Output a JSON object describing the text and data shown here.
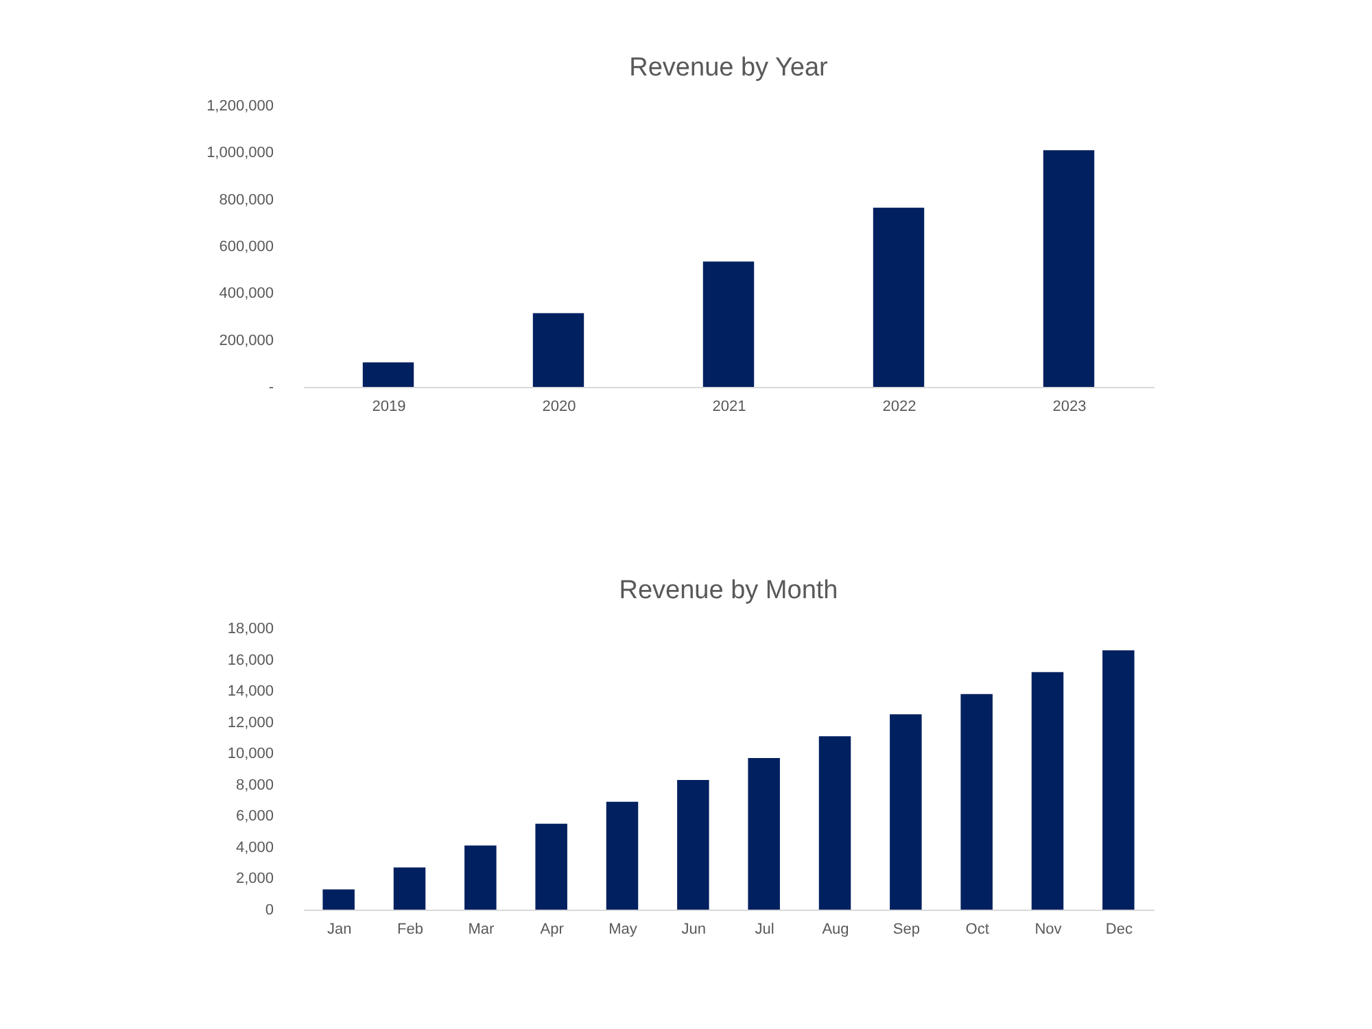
{
  "chart_data": [
    {
      "type": "bar",
      "title": "Revenue by Year",
      "categories": [
        "2019",
        "2020",
        "2021",
        "2022",
        "2023"
      ],
      "values": [
        105000,
        315000,
        535000,
        765000,
        1010000
      ],
      "color": "#002060",
      "ylim": [
        0,
        1200000
      ],
      "yticks": [
        {
          "value": 0,
          "label": "-"
        },
        {
          "value": 200000,
          "label": "200,000"
        },
        {
          "value": 400000,
          "label": "400,000"
        },
        {
          "value": 600000,
          "label": "600,000"
        },
        {
          "value": 800000,
          "label": "800,000"
        },
        {
          "value": 1000000,
          "label": "1,000,000"
        },
        {
          "value": 1200000,
          "label": "1,200,000"
        }
      ],
      "grid": false
    },
    {
      "type": "bar",
      "title": "Revenue by Month",
      "categories": [
        "Jan",
        "Feb",
        "Mar",
        "Apr",
        "May",
        "Jun",
        "Jul",
        "Aug",
        "Sep",
        "Oct",
        "Nov",
        "Dec"
      ],
      "values": [
        1300,
        2700,
        4100,
        5500,
        6900,
        8300,
        9700,
        11100,
        12500,
        13800,
        15200,
        16600
      ],
      "color": "#002060",
      "ylim": [
        0,
        18000
      ],
      "yticks": [
        0,
        {
          "value": 2000,
          "label": "2,000"
        },
        {
          "value": 4000,
          "label": "4,000"
        },
        {
          "value": 6000,
          "label": "6,000"
        },
        {
          "value": 8000,
          "label": "8,000"
        },
        {
          "value": 10000,
          "label": "10,000"
        },
        {
          "value": 12000,
          "label": "12,000"
        },
        {
          "value": 14000,
          "label": "14,000"
        },
        {
          "value": 16000,
          "label": "16,000"
        },
        {
          "value": 18000,
          "label": "18,000"
        }
      ],
      "grid": false
    }
  ]
}
